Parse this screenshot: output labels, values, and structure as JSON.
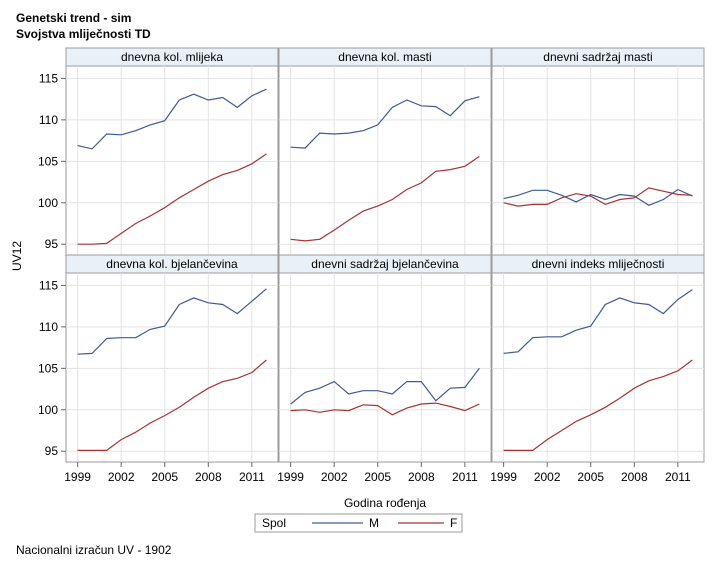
{
  "header": {
    "title": "Genetski trend - sim",
    "subtitle": "Svojstva mliječnosti TD"
  },
  "footnote": "Nacionalni izračun UV - 1902",
  "chart_data": {
    "type": "line",
    "ylabel": "UV12",
    "xlabel": "Godina rođenja",
    "xlim": [
      1998.2,
      2012.8
    ],
    "ylim": [
      93.7,
      116.5
    ],
    "xticks": [
      1999,
      2002,
      2005,
      2008,
      2011
    ],
    "yticks": [
      95,
      100,
      105,
      110,
      115
    ],
    "grid": true,
    "legend": {
      "title": "Spol",
      "position": "bottom-center",
      "entries": [
        {
          "name": "M",
          "color": "#3c5a9a"
        },
        {
          "name": "F",
          "color": "#a83232"
        }
      ]
    },
    "x": [
      1999,
      2000,
      2001,
      2002,
      2003,
      2004,
      2005,
      2006,
      2007,
      2008,
      2009,
      2010,
      2011,
      2012
    ],
    "panels": [
      {
        "title": "dnevna kol. mlijeka",
        "series": [
          {
            "name": "M",
            "values": [
              106.9,
              106.5,
              108.3,
              108.2,
              108.7,
              109.4,
              109.9,
              112.4,
              113.1,
              112.4,
              112.7,
              111.5,
              112.9,
              113.7
            ]
          },
          {
            "name": "F",
            "values": [
              95.0,
              95.0,
              95.1,
              96.3,
              97.5,
              98.4,
              99.4,
              100.6,
              101.6,
              102.6,
              103.4,
              103.9,
              104.7,
              105.9
            ]
          }
        ]
      },
      {
        "title": "dnevna kol. masti",
        "series": [
          {
            "name": "M",
            "values": [
              106.7,
              106.6,
              108.4,
              108.3,
              108.4,
              108.7,
              109.4,
              111.5,
              112.4,
              111.7,
              111.6,
              110.5,
              112.3,
              112.8
            ]
          },
          {
            "name": "F",
            "values": [
              95.6,
              95.4,
              95.6,
              96.7,
              97.9,
              99.0,
              99.6,
              100.4,
              101.6,
              102.4,
              103.8,
              104.0,
              104.4,
              105.6
            ]
          }
        ]
      },
      {
        "title": "dnevni sadržaj masti",
        "series": [
          {
            "name": "M",
            "values": [
              100.5,
              100.9,
              101.5,
              101.5,
              100.9,
              100.1,
              101.0,
              100.4,
              101.0,
              100.8,
              99.7,
              100.4,
              101.6,
              100.8
            ]
          },
          {
            "name": "F",
            "values": [
              100.0,
              99.6,
              99.8,
              99.8,
              100.6,
              101.1,
              100.8,
              99.8,
              100.4,
              100.6,
              101.8,
              101.4,
              101.0,
              100.9
            ]
          }
        ]
      },
      {
        "title": "dnevna kol. bjelančevina",
        "series": [
          {
            "name": "M",
            "values": [
              106.7,
              106.8,
              108.6,
              108.7,
              108.7,
              109.7,
              110.1,
              112.7,
              113.5,
              112.9,
              112.7,
              111.6,
              113.1,
              114.6
            ]
          },
          {
            "name": "F",
            "values": [
              95.1,
              95.1,
              95.1,
              96.4,
              97.3,
              98.4,
              99.3,
              100.3,
              101.5,
              102.6,
              103.4,
              103.8,
              104.5,
              106.0
            ]
          }
        ]
      },
      {
        "title": "dnevni sadržaj bjelančevina",
        "series": [
          {
            "name": "M",
            "values": [
              100.7,
              102.1,
              102.6,
              103.4,
              101.9,
              102.3,
              102.3,
              101.9,
              103.4,
              103.4,
              101.1,
              102.6,
              102.7,
              105.0
            ]
          },
          {
            "name": "F",
            "values": [
              99.9,
              100.0,
              99.7,
              100.0,
              99.9,
              100.6,
              100.5,
              99.4,
              100.2,
              100.7,
              100.8,
              100.4,
              99.9,
              100.7
            ]
          }
        ]
      },
      {
        "title": "dnevni indeks mliječnosti",
        "series": [
          {
            "name": "M",
            "values": [
              106.8,
              107.0,
              108.7,
              108.8,
              108.8,
              109.6,
              110.1,
              112.7,
              113.5,
              112.9,
              112.7,
              111.6,
              113.3,
              114.5
            ]
          },
          {
            "name": "F",
            "values": [
              95.1,
              95.1,
              95.1,
              96.4,
              97.5,
              98.6,
              99.4,
              100.3,
              101.4,
              102.6,
              103.5,
              104.0,
              104.7,
              106.0
            ]
          }
        ]
      }
    ]
  }
}
